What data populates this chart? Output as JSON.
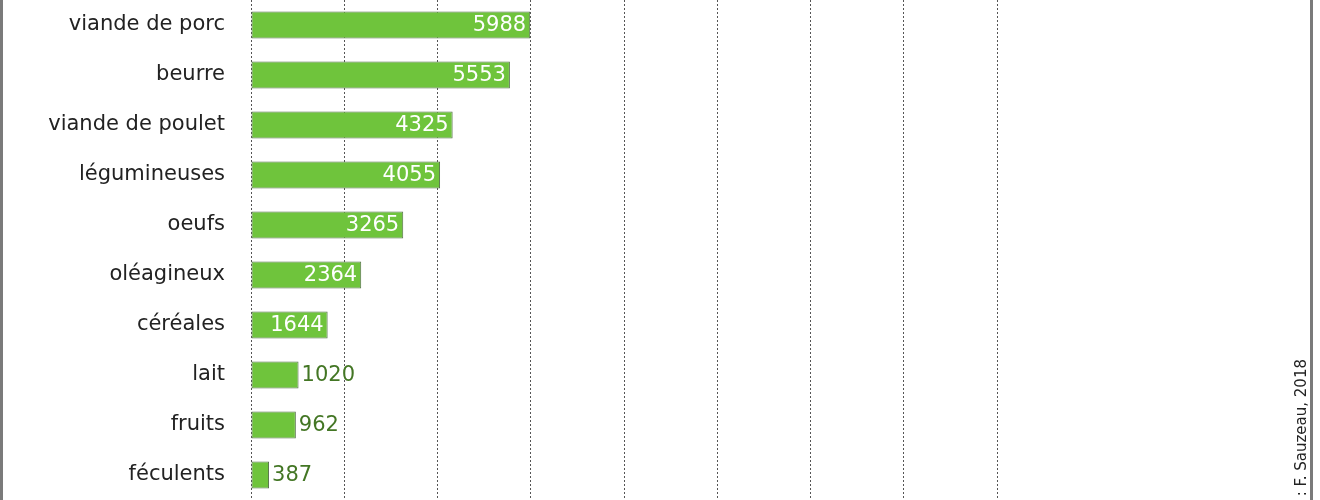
{
  "chart_data": {
    "type": "bar",
    "orientation": "horizontal",
    "categories": [
      "viande de porc",
      "beurre",
      "viande de poulet",
      "légumineuses",
      "oeufs",
      "oléagineux",
      "céréales",
      "lait",
      "fruits",
      "féculents"
    ],
    "values": [
      5988,
      5553,
      4325,
      4055,
      3265,
      2364,
      1644,
      1020,
      962,
      387
    ],
    "color": "#6fc43c",
    "xlim": [
      0,
      16000
    ],
    "xticks": [
      {
        "value": 0,
        "label": null
      },
      {
        "value": 2000,
        "label": null
      },
      {
        "value": 4000,
        "label": null
      },
      {
        "value": 6000,
        "label": null
      },
      {
        "value": 8000,
        "label": null
      },
      {
        "value": 10000,
        "label": null
      },
      {
        "value": 12000,
        "label": null
      },
      {
        "value": 14000,
        "label": null
      },
      {
        "value": 16000,
        "label": null
      }
    ],
    "grid": "x",
    "data_labels": true,
    "tick_labels": "y",
    "annotations": [
      ": F. Sauzeau, 2018"
    ]
  }
}
